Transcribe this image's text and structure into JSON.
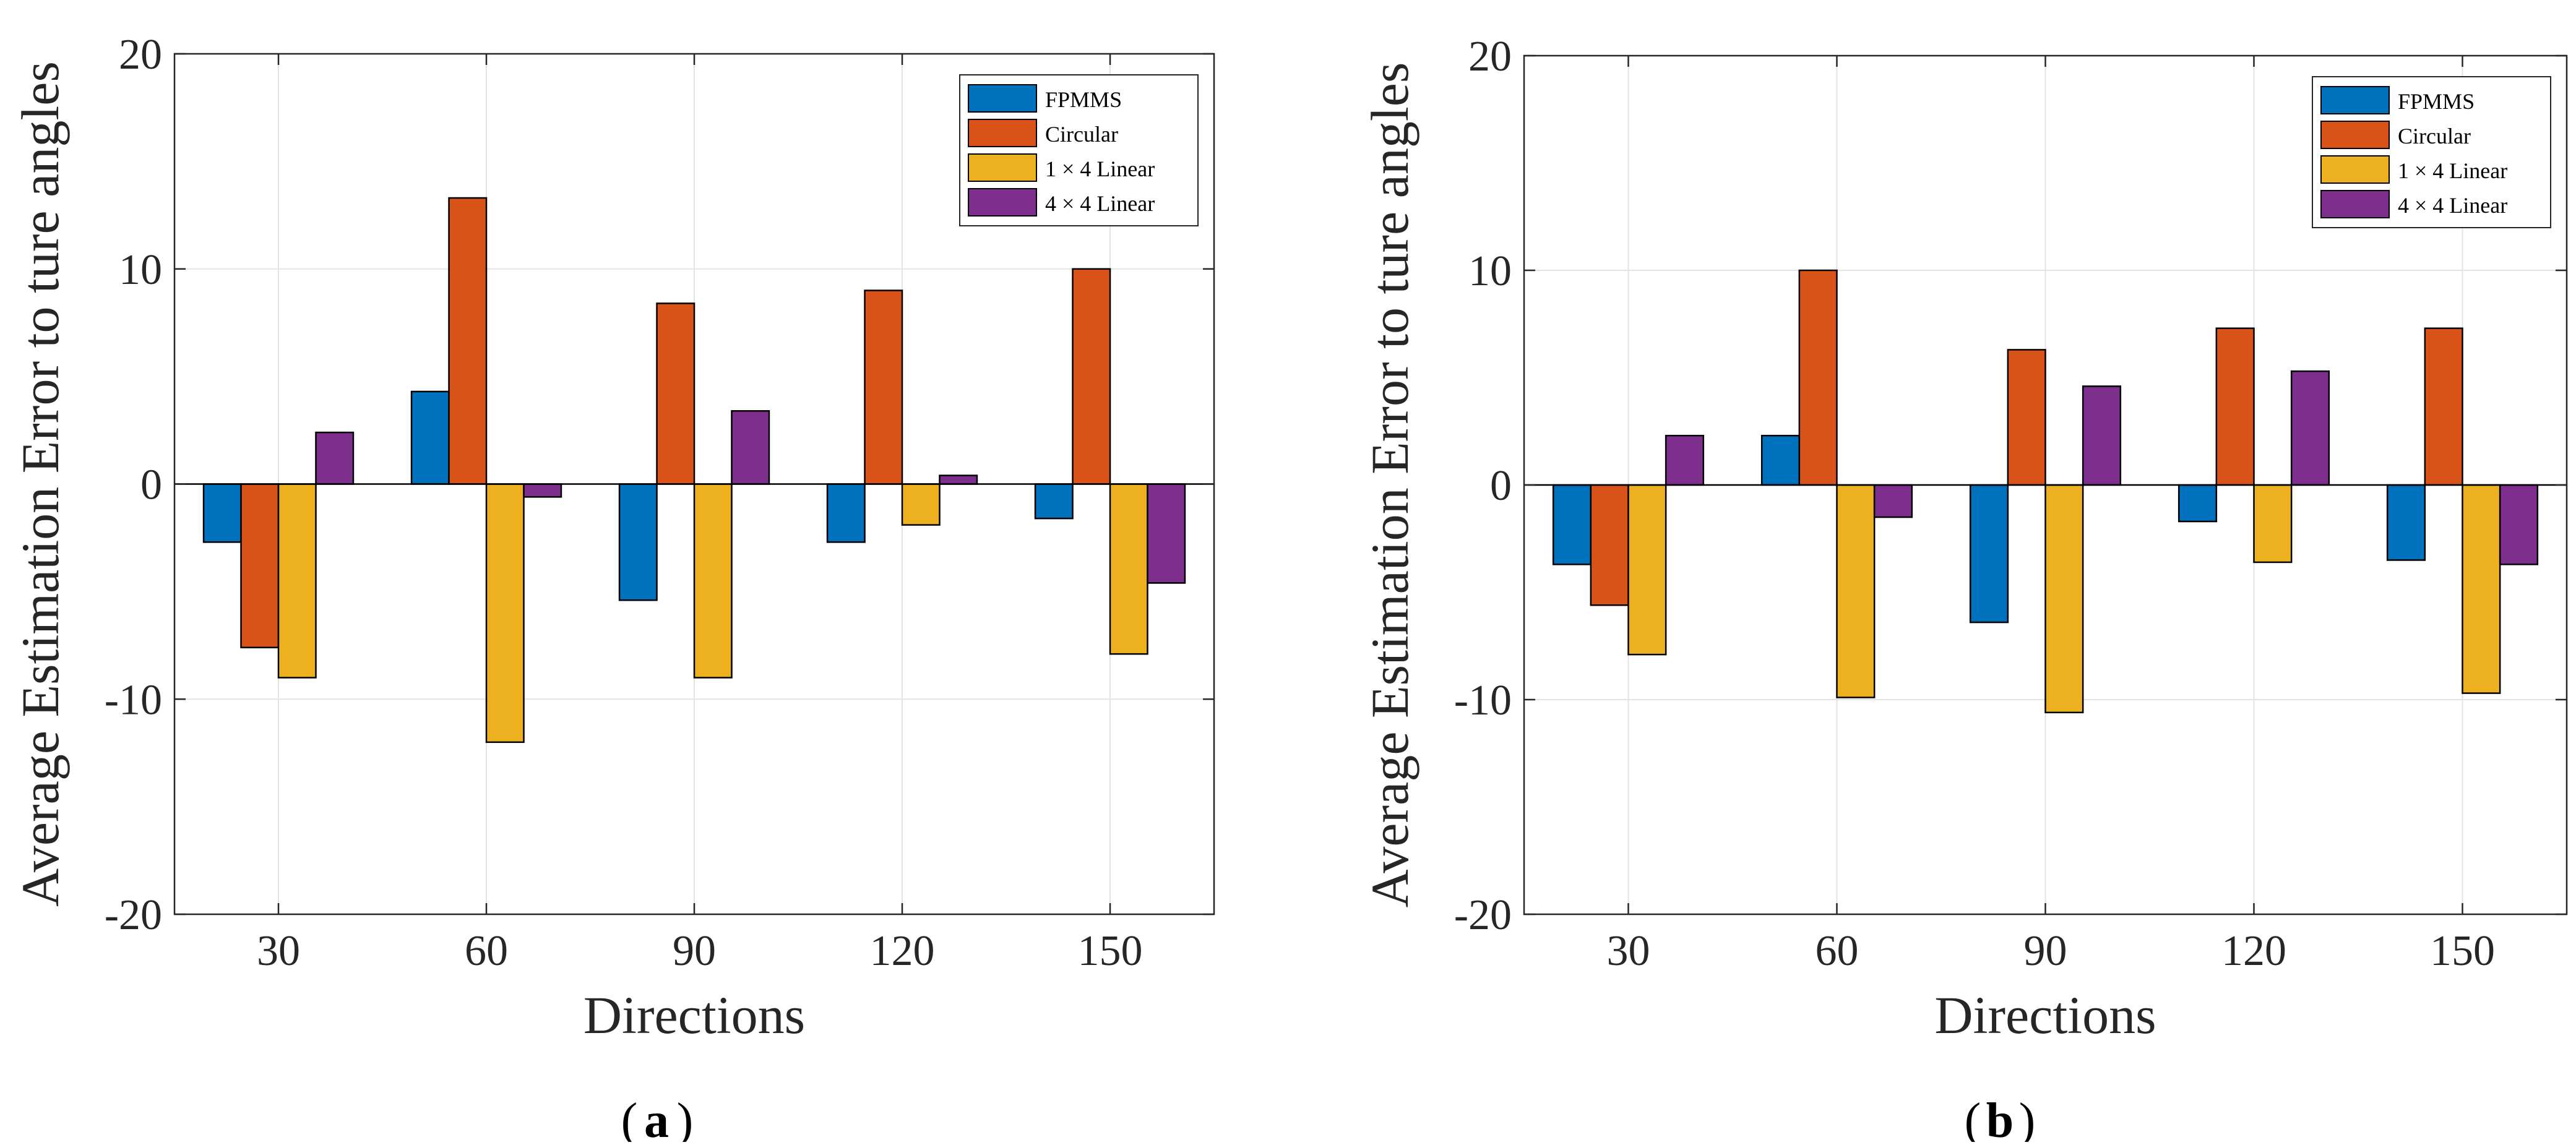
{
  "colors": {
    "series": [
      "#0072BD",
      "#D95319",
      "#EDB120",
      "#7E2F8E"
    ],
    "grid": "#e3e3e3",
    "axis": "#262626",
    "text": "#262626"
  },
  "chart_data": [
    {
      "type": "bar",
      "panel_label": "(a)",
      "panel_letter": "a",
      "title": "",
      "xlabel": "Directions",
      "ylabel": "Average Estimation Error to ture angles",
      "categories": [
        "30",
        "60",
        "90",
        "120",
        "150"
      ],
      "ylim": [
        -20,
        20
      ],
      "yticks": [
        -20,
        -10,
        0,
        10,
        20
      ],
      "ytick_labels": [
        "-20",
        "-10",
        "0",
        "10",
        "20"
      ],
      "grid": true,
      "legend_position": "top-right",
      "series": [
        {
          "name": "FPMMS",
          "values": [
            -2.7,
            4.3,
            -5.4,
            -2.7,
            -1.6
          ]
        },
        {
          "name": "Circular",
          "values": [
            -7.6,
            13.3,
            8.4,
            9.0,
            10.0
          ]
        },
        {
          "name": "1 × 4 Linear",
          "values": [
            -9.0,
            -12.0,
            -9.0,
            -1.9,
            -7.9
          ]
        },
        {
          "name": "4 × 4 Linear",
          "values": [
            2.4,
            -0.6,
            3.4,
            0.4,
            -4.6
          ]
        }
      ]
    },
    {
      "type": "bar",
      "panel_label": "(b)",
      "panel_letter": "b",
      "title": "",
      "xlabel": "Directions",
      "ylabel": "Average Estimation Error to ture angles",
      "categories": [
        "30",
        "60",
        "90",
        "120",
        "150"
      ],
      "ylim": [
        -20,
        20
      ],
      "yticks": [
        -20,
        -10,
        0,
        10,
        20
      ],
      "ytick_labels": [
        "-20",
        "-10",
        "0",
        "10",
        "20"
      ],
      "grid": true,
      "legend_position": "top-right",
      "series": [
        {
          "name": "FPMMS",
          "values": [
            -3.7,
            2.3,
            -6.4,
            -1.7,
            -3.5
          ]
        },
        {
          "name": "Circular",
          "values": [
            -5.6,
            10.0,
            6.3,
            7.3,
            7.3
          ]
        },
        {
          "name": "1 × 4 Linear",
          "values": [
            -7.9,
            -9.9,
            -10.6,
            -3.6,
            -9.7
          ]
        },
        {
          "name": "4 × 4 Linear",
          "values": [
            2.3,
            -1.5,
            4.6,
            5.3,
            -3.7
          ]
        }
      ]
    }
  ]
}
